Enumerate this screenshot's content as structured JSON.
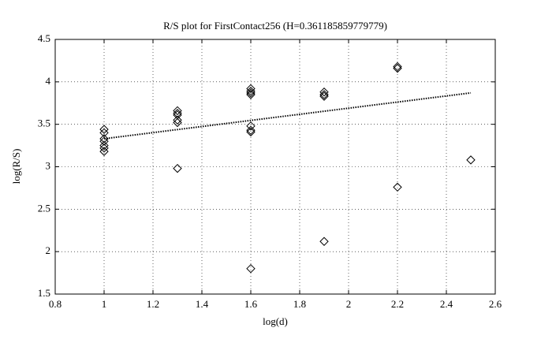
{
  "chart_data": {
    "type": "scatter",
    "title": "R/S plot for FirstContact256 (H=0.361185859779779)",
    "x_label": "log(d)",
    "y_label": "log(R/S)",
    "xlim": [
      0.8,
      2.6
    ],
    "xticks": [
      0.8,
      1,
      1.2,
      1.4,
      1.6,
      1.8,
      2,
      2.2,
      2.4,
      2.6
    ],
    "ylim": [
      1.5,
      4.5
    ],
    "yticks": [
      1.5,
      2,
      2.5,
      3,
      3.5,
      4,
      4.5
    ],
    "grid": true,
    "points": {
      "color": "#000000",
      "x": [
        1,
        1,
        1,
        1,
        1,
        1,
        1,
        1.3,
        1.3,
        1.3,
        1.3,
        1.3,
        1.3,
        1.6,
        1.6,
        1.6,
        1.6,
        1.6,
        1.6,
        1.6,
        1.6,
        1.9,
        1.9,
        1.9,
        1.9,
        2.2,
        2.2,
        2.2,
        2.5
      ],
      "y": [
        3.44,
        3.4,
        3.33,
        3.3,
        3.25,
        3.22,
        3.18,
        3.66,
        3.63,
        3.61,
        3.55,
        3.52,
        2.98,
        3.92,
        3.89,
        3.87,
        3.85,
        3.48,
        3.43,
        3.41,
        1.8,
        3.88,
        3.85,
        3.83,
        2.12,
        4.18,
        4.16,
        2.76,
        3.08
      ]
    },
    "fit_line": {
      "color": "#000000",
      "x": [
        1,
        2.5
      ],
      "y": [
        3.33,
        3.87
      ]
    }
  }
}
